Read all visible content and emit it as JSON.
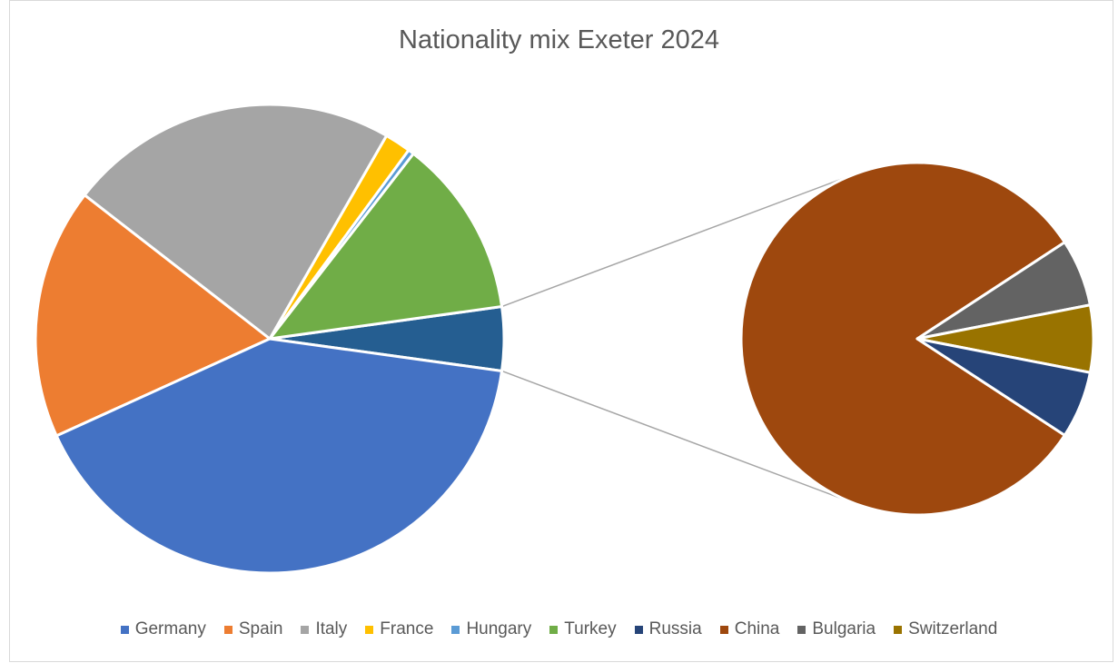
{
  "chart_data": {
    "type": "pie",
    "subtype": "bar-of-pie (pie of pie)",
    "title": "Nationality mix Exeter 2024",
    "legend_position": "bottom",
    "slices": [
      {
        "name": "Germany",
        "value": 41.0,
        "color": "#4472C4"
      },
      {
        "name": "Spain",
        "value": 17.3,
        "color": "#ED7D31"
      },
      {
        "name": "Italy",
        "value": 22.8,
        "color": "#A5A5A5"
      },
      {
        "name": "France",
        "value": 1.8,
        "color": "#FFC000"
      },
      {
        "name": "Hungary",
        "value": 0.4,
        "color": "#5B9BD5"
      },
      {
        "name": "Turkey",
        "value": 12.3,
        "color": "#70AD47"
      },
      {
        "name": "Russia",
        "value": 0.27,
        "color": "#264478"
      },
      {
        "name": "China",
        "value": 3.58,
        "color": "#9E480E"
      },
      {
        "name": "Bulgaria",
        "value": 0.27,
        "color": "#636363"
      },
      {
        "name": "Switzerland",
        "value": 0.27,
        "color": "#997300"
      }
    ],
    "primary_order": [
      "Turkey",
      "Hungary",
      "France",
      "Italy",
      "Spain",
      "Germany"
    ],
    "secondary_group_color": "#255E91",
    "secondary_order": [
      "China",
      "Bulgaria",
      "Switzerland",
      "Russia"
    ]
  },
  "legend": {
    "items": [
      {
        "label": "Germany",
        "color": "#4472C4"
      },
      {
        "label": "Spain",
        "color": "#ED7D31"
      },
      {
        "label": "Italy",
        "color": "#A5A5A5"
      },
      {
        "label": "France",
        "color": "#FFC000"
      },
      {
        "label": "Hungary",
        "color": "#5B9BD5"
      },
      {
        "label": "Turkey",
        "color": "#70AD47"
      },
      {
        "label": "Russia",
        "color": "#264478"
      },
      {
        "label": "China",
        "color": "#9E480E"
      },
      {
        "label": "Bulgaria",
        "color": "#636363"
      },
      {
        "label": "Switzerland",
        "color": "#997300"
      }
    ]
  }
}
